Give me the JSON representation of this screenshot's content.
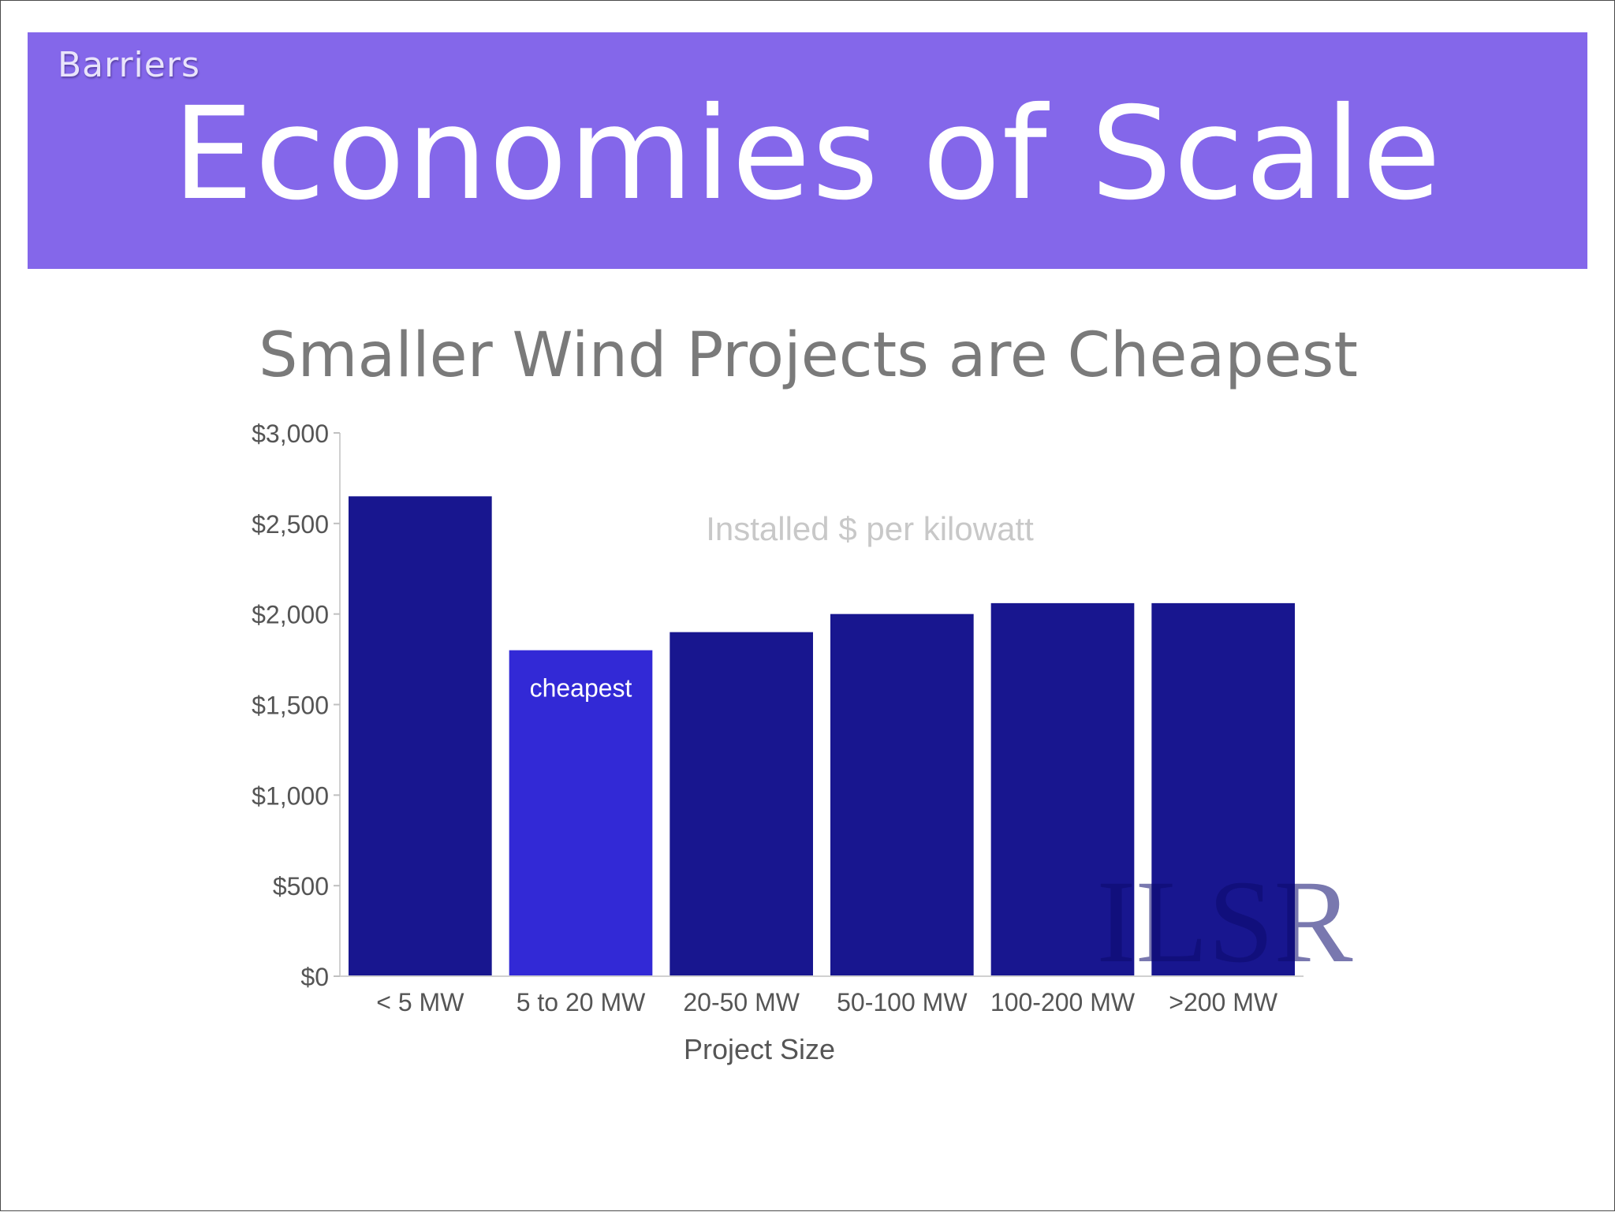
{
  "slide": {
    "section_label": "Barriers",
    "title": "Economies of Scale",
    "subtitle": "Smaller Wind Projects are Cheapest"
  },
  "colors": {
    "banner": "#8467ea",
    "bar": "#18168f",
    "highlight_bar": "#3229d6",
    "axis_text": "#555555",
    "annotation": "#c8c8c8"
  },
  "watermark": "ILSR",
  "chart_data": {
    "type": "bar",
    "categories": [
      "< 5 MW",
      "5 to 20 MW",
      "20-50 MW",
      "50-100 MW",
      "100-200 MW",
      ">200 MW"
    ],
    "values": [
      2650,
      1800,
      1900,
      2000,
      2060,
      2060
    ],
    "highlight_index": 1,
    "bar_label": "cheapest",
    "annotation": "Installed $ per kilowatt",
    "xlabel": "Project Size",
    "ylabel": "",
    "ylim": [
      0,
      3000
    ],
    "yticks": [
      0,
      500,
      1000,
      1500,
      2000,
      2500,
      3000
    ],
    "ytick_labels": [
      "$0",
      "$500",
      "$1,000",
      "$1,500",
      "$2,000",
      "$2,500",
      "$3,000"
    ],
    "grid": false,
    "legend": "none"
  }
}
